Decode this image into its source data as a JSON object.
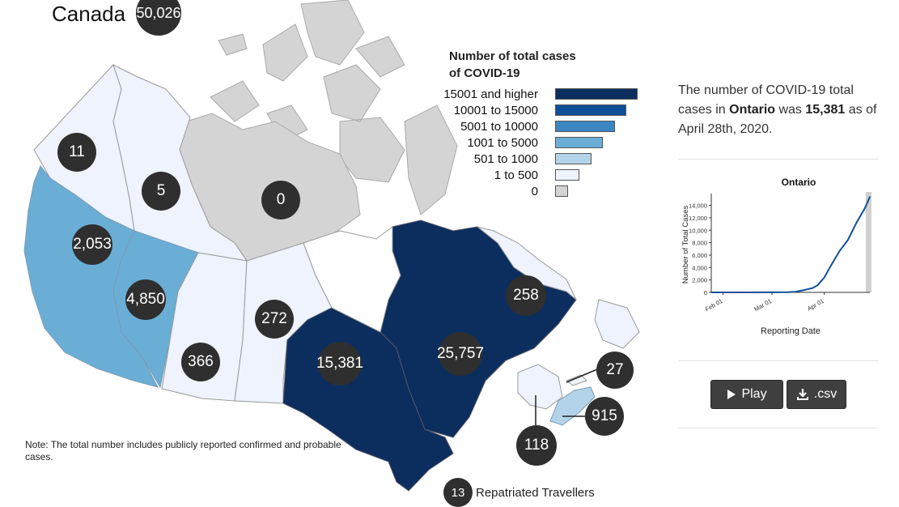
{
  "map": {
    "title": "Canada",
    "total": "50,026",
    "legend": {
      "title_line1": "Number of total cases",
      "title_line2": "of COVID-19",
      "items": [
        {
          "label": "15001 and higher",
          "color": "#0b2e5e"
        },
        {
          "label": "10001 to 15000",
          "color": "#0e4f9a"
        },
        {
          "label": "5001 to 10000",
          "color": "#3c86c2"
        },
        {
          "label": "1001 to 5000",
          "color": "#6aaed6"
        },
        {
          "label": "501 to 1000",
          "color": "#b3d3e8"
        },
        {
          "label": "1 to 500",
          "color": "#eef3fd"
        },
        {
          "label": "0",
          "color": "#d4d4d4"
        }
      ]
    },
    "regions": {
      "yukon": "11",
      "northwest_territories": "5",
      "nunavut": "0",
      "british_columbia": "2,053",
      "alberta": "4,850",
      "saskatchewan": "366",
      "manitoba": "272",
      "ontario": "15,381",
      "quebec": "25,757",
      "newfoundland_labrador": "258",
      "prince_edward_island": "27",
      "nova_scotia": "915",
      "new_brunswick": "118"
    },
    "repatriated": {
      "count": "13",
      "label": "Repatriated Travellers"
    },
    "note": "Note: The total number includes publicly reported confirmed and probable cases."
  },
  "panel": {
    "desc_prefix": "The number of COVID-19 total cases in ",
    "province": "Ontario",
    "desc_mid": " was ",
    "value": "15,381",
    "desc_suffix": " as of April 28th, 2020.",
    "play_label": "Play",
    "csv_label": ".csv"
  },
  "chart_data": {
    "type": "line",
    "title": "Ontario",
    "xlabel": "Reporting Date",
    "ylabel": "Number of Total Cases",
    "x_ticks": [
      "Feb 01",
      "Mar 01",
      "Apr 01"
    ],
    "y_ticks": [
      "0",
      "2,000",
      "4,000",
      "6,000",
      "8,000",
      "10,000",
      "12,000",
      "14,000"
    ],
    "ylim": [
      0,
      15381
    ],
    "xlim": [
      "2020-01-25",
      "2020-04-28"
    ],
    "series": [
      {
        "color": "#0e4f9a",
        "x": [
          "2020-01-25",
          "2020-02-15",
          "2020-03-01",
          "2020-03-10",
          "2020-03-15",
          "2020-03-20",
          "2020-03-25",
          "2020-03-28",
          "2020-04-01",
          "2020-04-05",
          "2020-04-10",
          "2020-04-15",
          "2020-04-20",
          "2020-04-25",
          "2020-04-28"
        ],
        "values": [
          1,
          3,
          15,
          36,
          103,
          377,
          688,
          1144,
          2392,
          4347,
          6648,
          8447,
          11184,
          13519,
          15381
        ]
      }
    ],
    "highlight_range": [
      "2020-04-27",
      "2020-04-28"
    ]
  }
}
